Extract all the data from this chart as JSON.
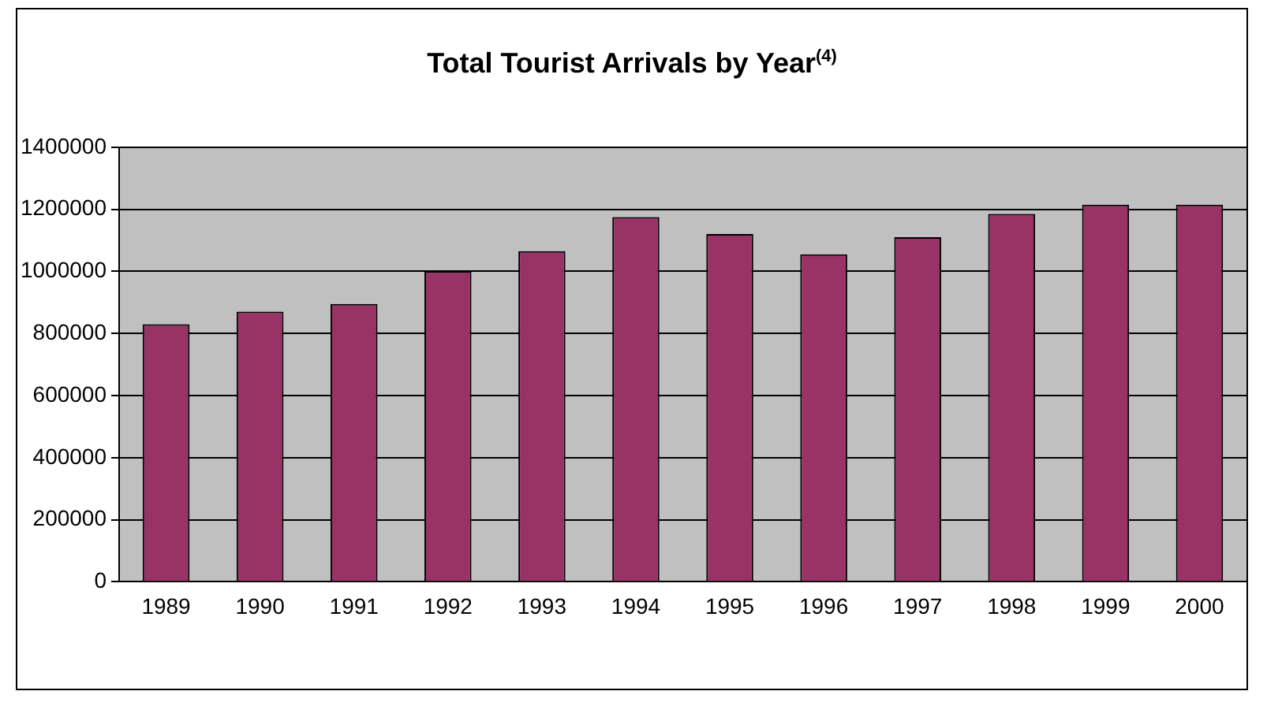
{
  "chart_data": {
    "type": "bar",
    "title": "Total Tourist Arrivals by Year$^{(4)}$",
    "categories": [
      "1989",
      "1990",
      "1991",
      "1992",
      "1993",
      "1994",
      "1995",
      "1996",
      "1997",
      "1998",
      "1999",
      "2000"
    ],
    "values": [
      830000,
      870000,
      895000,
      1000000,
      1065000,
      1175000,
      1120000,
      1055000,
      1110000,
      1185000,
      1215000,
      1215000
    ],
    "color": "#993366",
    "ylim": [
      0,
      1400000
    ],
    "yticks": [
      0,
      200000,
      400000,
      600000,
      800000,
      1000000,
      1200000,
      1400000
    ],
    "grid": "y",
    "legend": false
  }
}
